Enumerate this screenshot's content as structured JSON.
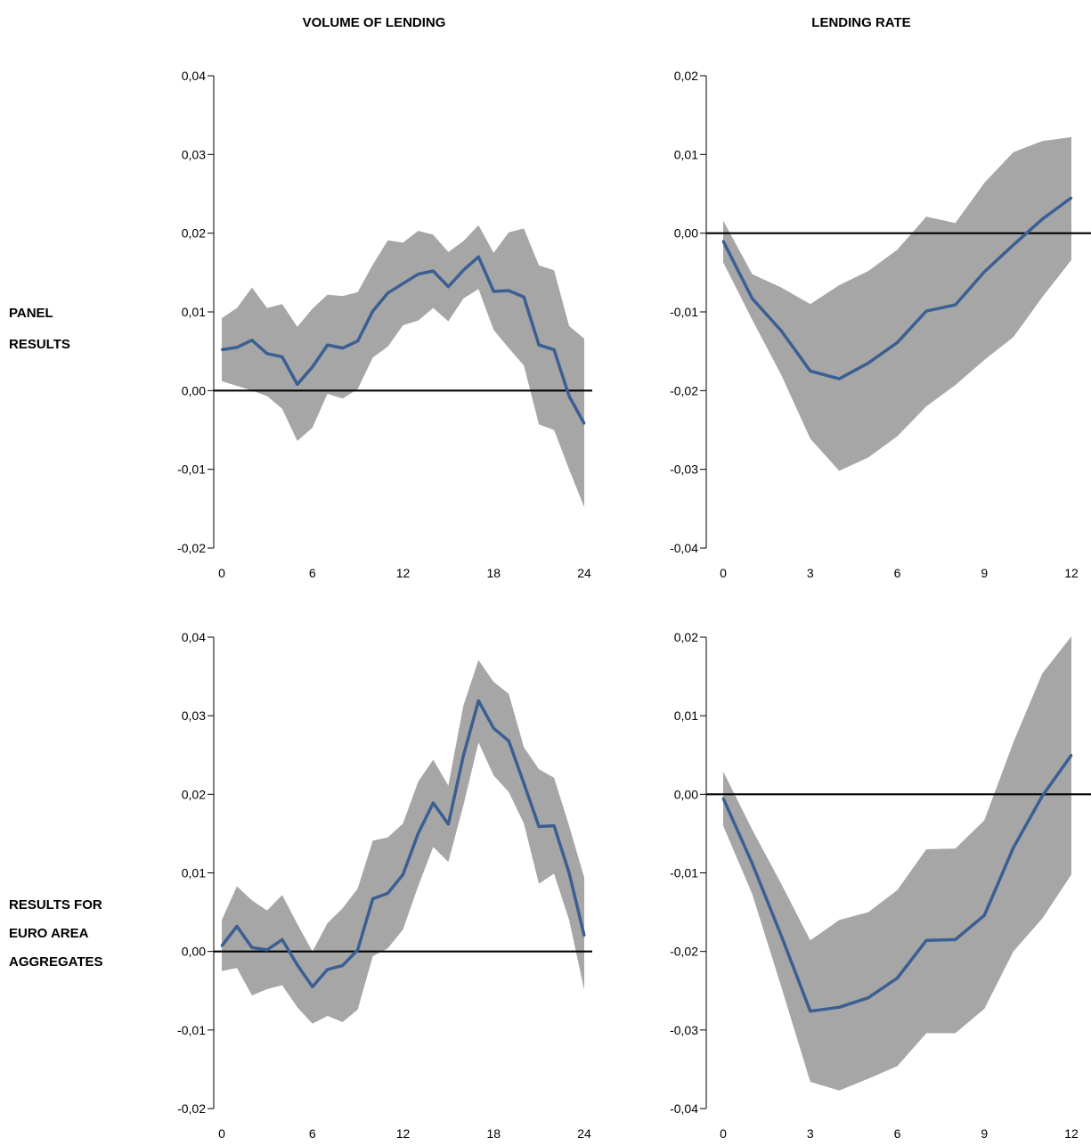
{
  "column_titles": [
    "VOLUME OF LENDING",
    "LENDING RATE"
  ],
  "row_labels": [
    [
      "PANEL",
      "RESULTS"
    ],
    [
      "RESULTS FOR",
      "EURO AREA",
      "AGGREGATES"
    ]
  ],
  "colors": {
    "line": "#3b5f92",
    "band": "#a6a6a6",
    "axis": "#000000",
    "zero_line": "#000000"
  },
  "chart_data": [
    {
      "type": "area",
      "panel": "panel-volume",
      "column": "VOLUME OF LENDING",
      "row": "PANEL RESULTS",
      "x": [
        0,
        1,
        2,
        3,
        4,
        5,
        6,
        7,
        8,
        9,
        10,
        11,
        12,
        13,
        14,
        15,
        16,
        17,
        18,
        19,
        20,
        21,
        22,
        23,
        24
      ],
      "series": [
        {
          "values": [
            0.0052,
            0.0055,
            0.0064,
            0.0047,
            0.0043,
            0.0008,
            0.003,
            0.0058,
            0.0054,
            0.0063,
            0.0101,
            0.0124,
            0.0136,
            0.0148,
            0.0152,
            0.0132,
            0.0153,
            0.017,
            0.0126,
            0.0127,
            0.0119,
            0.0058,
            0.0052,
            -0.0007,
            -0.0042
          ]
        }
      ],
      "band_upper": [
        0.0092,
        0.0105,
        0.0131,
        0.0105,
        0.011,
        0.0081,
        0.0104,
        0.0122,
        0.012,
        0.0125,
        0.016,
        0.0191,
        0.0188,
        0.0203,
        0.0198,
        0.0176,
        0.019,
        0.021,
        0.0175,
        0.0201,
        0.0206,
        0.0159,
        0.0153,
        0.0082,
        0.0066
      ],
      "band_lower": [
        0.0012,
        0.0006,
        0.0,
        -0.0007,
        -0.0023,
        -0.0064,
        -0.0047,
        -0.0004,
        -0.001,
        0.0002,
        0.0042,
        0.0056,
        0.0083,
        0.0089,
        0.0105,
        0.0088,
        0.0117,
        0.0129,
        0.0077,
        0.0054,
        0.0032,
        -0.0043,
        -0.005,
        -0.01,
        -0.0148
      ],
      "xticks": [
        0,
        6,
        12,
        18,
        24
      ],
      "xtick_labels": [
        "0",
        "6",
        "12",
        "18",
        "24"
      ],
      "yticks": [
        -0.02,
        -0.01,
        0.0,
        0.01,
        0.02,
        0.03,
        0.04
      ],
      "ytick_labels": [
        "-0,02",
        "-0,01",
        "0,00",
        "0,01",
        "0,02",
        "0,03",
        "0,04"
      ],
      "xlim": [
        0,
        24
      ],
      "ylim": [
        -0.02,
        0.04
      ]
    },
    {
      "type": "area",
      "panel": "panel-rate",
      "column": "LENDING RATE",
      "row": "PANEL RESULTS",
      "x": [
        0,
        1,
        2,
        3,
        4,
        5,
        6,
        7,
        8,
        9,
        10,
        11,
        12
      ],
      "series": [
        {
          "values": [
            -0.001,
            -0.0083,
            -0.0124,
            -0.0175,
            -0.0185,
            -0.0165,
            -0.0139,
            -0.0099,
            -0.0091,
            -0.0049,
            -0.0015,
            0.0018,
            0.0045
          ]
        }
      ],
      "band_upper": [
        0.0016,
        -0.0052,
        -0.0069,
        -0.009,
        -0.0066,
        -0.0048,
        -0.0021,
        0.0021,
        0.0013,
        0.0064,
        0.0103,
        0.0117,
        0.0122
      ],
      "band_lower": [
        -0.0037,
        -0.011,
        -0.018,
        -0.0261,
        -0.0302,
        -0.0285,
        -0.0258,
        -0.022,
        -0.0193,
        -0.0161,
        -0.0132,
        -0.0081,
        -0.0034
      ],
      "xticks": [
        0,
        3,
        6,
        9,
        12
      ],
      "xtick_labels": [
        "0",
        "3",
        "6",
        "9",
        "12"
      ],
      "yticks": [
        -0.04,
        -0.03,
        -0.02,
        -0.01,
        0.0,
        0.01,
        0.02
      ],
      "ytick_labels": [
        "-0,04",
        "-0,03",
        "-0,02",
        "-0,01",
        "0,00",
        "0,01",
        "0,02"
      ],
      "xlim": [
        0,
        12
      ],
      "ylim": [
        -0.04,
        0.02
      ]
    },
    {
      "type": "area",
      "panel": "euro-volume",
      "column": "VOLUME OF LENDING",
      "row": "RESULTS FOR EURO AREA AGGREGATES",
      "x": [
        0,
        1,
        2,
        3,
        4,
        5,
        6,
        7,
        8,
        9,
        10,
        11,
        12,
        13,
        14,
        15,
        16,
        17,
        18,
        19,
        20,
        21,
        22,
        23,
        24
      ],
      "series": [
        {
          "values": [
            0.0007,
            0.0032,
            0.0005,
            0.0002,
            0.0015,
            -0.0017,
            -0.0045,
            -0.0023,
            -0.0018,
            0.0002,
            0.0067,
            0.0074,
            0.0098,
            0.015,
            0.0189,
            0.0162,
            0.0249,
            0.0319,
            0.0284,
            0.0268,
            0.0214,
            0.0159,
            0.016,
            0.01,
            0.002
          ]
        }
      ],
      "band_upper": [
        0.004,
        0.0083,
        0.0065,
        0.0052,
        0.0072,
        0.0035,
        0.0,
        0.0036,
        0.0055,
        0.008,
        0.0141,
        0.0145,
        0.0163,
        0.0216,
        0.0244,
        0.0211,
        0.0313,
        0.0371,
        0.0343,
        0.0328,
        0.026,
        0.0232,
        0.0221,
        0.016,
        0.0094
      ],
      "band_lower": [
        -0.0025,
        -0.0021,
        -0.0056,
        -0.0048,
        -0.0043,
        -0.0071,
        -0.0092,
        -0.0082,
        -0.009,
        -0.0074,
        -0.0006,
        0.0004,
        0.0028,
        0.0083,
        0.0133,
        0.0114,
        0.0186,
        0.0266,
        0.0224,
        0.0203,
        0.0163,
        0.0086,
        0.0099,
        0.004,
        -0.0049
      ],
      "xticks": [
        0,
        6,
        12,
        18,
        24
      ],
      "xtick_labels": [
        "0",
        "6",
        "12",
        "18",
        "24"
      ],
      "yticks": [
        -0.02,
        -0.01,
        0.0,
        0.01,
        0.02,
        0.03,
        0.04
      ],
      "ytick_labels": [
        "-0,02",
        "-0,01",
        "0,00",
        "0,01",
        "0,02",
        "0,03",
        "0,04"
      ],
      "xlim": [
        0,
        24
      ],
      "ylim": [
        -0.02,
        0.04
      ]
    },
    {
      "type": "area",
      "panel": "euro-rate",
      "column": "LENDING RATE",
      "row": "RESULTS FOR EURO AREA AGGREGATES",
      "x": [
        0,
        1,
        2,
        3,
        4,
        5,
        6,
        7,
        8,
        9,
        10,
        11,
        12
      ],
      "series": [
        {
          "values": [
            -0.0005,
            -0.0088,
            -0.018,
            -0.0276,
            -0.0271,
            -0.0259,
            -0.0234,
            -0.0186,
            -0.0185,
            -0.0154,
            -0.0068,
            -0.0002,
            0.005
          ]
        }
      ],
      "band_upper": [
        0.0029,
        -0.0045,
        -0.0114,
        -0.0186,
        -0.016,
        -0.015,
        -0.0122,
        -0.007,
        -0.0069,
        -0.0033,
        0.0066,
        0.0154,
        0.0201
      ],
      "band_lower": [
        -0.004,
        -0.0127,
        -0.0245,
        -0.0366,
        -0.0377,
        -0.0362,
        -0.0346,
        -0.0304,
        -0.0304,
        -0.0273,
        -0.02,
        -0.0158,
        -0.0102
      ],
      "xticks": [
        0,
        3,
        6,
        9,
        12
      ],
      "xtick_labels": [
        "0",
        "3",
        "6",
        "9",
        "12"
      ],
      "yticks": [
        -0.04,
        -0.03,
        -0.02,
        -0.01,
        0.0,
        0.01,
        0.02
      ],
      "ytick_labels": [
        "-0,04",
        "-0,03",
        "-0,02",
        "-0,01",
        "0,00",
        "0,01",
        "0,02"
      ],
      "xlim": [
        0,
        12
      ],
      "ylim": [
        -0.04,
        0.02
      ]
    }
  ]
}
